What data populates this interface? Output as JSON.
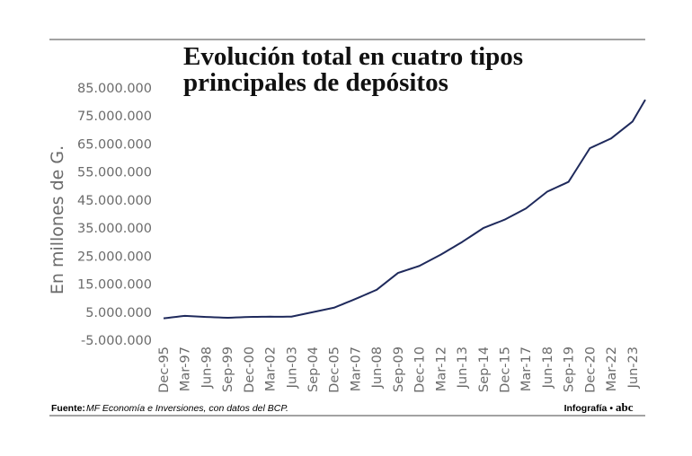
{
  "chart_data": {
    "type": "line",
    "title": [
      "Evolución total en cuatro tipos",
      "principales de depósitos"
    ],
    "y_label": "En millones de G.",
    "source_label": "Fuente:",
    "source": "MF Economía e Inversiones, con datos del BCP.",
    "credit": "Infografía •",
    "logo": "abc",
    "categories": [
      "Dec-95",
      null,
      null,
      null,
      null,
      "Mar-97",
      null,
      null,
      null,
      null,
      "Jun-98",
      null,
      null,
      null,
      null,
      "Sep-99",
      null,
      null,
      null,
      null,
      "Dec-00",
      null,
      null,
      null,
      null,
      "Mar-02",
      null,
      null,
      null,
      null,
      "Jun-03",
      null,
      null,
      null,
      null,
      "Sep-04",
      null,
      null,
      null,
      null,
      "Dec-05",
      null,
      null,
      null,
      null,
      "Mar-07",
      null,
      null,
      null,
      null,
      "Jun-08",
      null,
      null,
      null,
      null,
      "Sep-09",
      null,
      null,
      null,
      null,
      "Dec-10",
      null,
      null,
      null,
      null,
      "Mar-12",
      null,
      null,
      null,
      null,
      "Jun-13",
      null,
      null,
      null,
      null,
      "Sep-14",
      null,
      null,
      null,
      null,
      "Dec-15",
      null,
      null,
      null,
      null,
      "Mar-17",
      null,
      null,
      null,
      null,
      "Jun-18",
      null,
      null,
      null,
      null,
      "Sep-19",
      null,
      null,
      null,
      null,
      "Dec-20",
      null,
      null,
      null,
      null,
      "Mar-22",
      null,
      null,
      null,
      null,
      "Jun-23",
      null,
      null,
      null
    ],
    "series": [
      {
        "color": "#1f2a5c",
        "values": [
          2800000,
          2980000,
          3160000,
          3340000,
          3520000,
          3700000,
          3620000,
          3540000,
          3460000,
          3380000,
          3300000,
          3240000,
          3180000,
          3120000,
          3060000,
          3000000,
          3060000,
          3120000,
          3180000,
          3240000,
          3300000,
          3320000,
          3340000,
          3360000,
          3380000,
          3400000,
          3380000,
          3360000,
          3380000,
          3390000,
          3400000,
          3720000,
          4040000,
          4360000,
          4680000,
          5000000,
          5320000,
          5640000,
          5960000,
          6280000,
          6600000,
          7220000,
          7840000,
          8460000,
          9080000,
          9700000,
          10360000,
          11020000,
          11680000,
          12340000,
          13000000,
          14200000,
          15400000,
          16600000,
          17800000,
          19000000,
          19500000,
          20000000,
          20500000,
          21000000,
          21500000,
          22300000,
          23100000,
          23900000,
          24700000,
          25500000,
          26400000,
          27300000,
          28200000,
          29100000,
          30000000,
          31000000,
          32000000,
          33000000,
          34000000,
          35000000,
          35600000,
          36200000,
          36800000,
          37400000,
          38000000,
          38800000,
          39600000,
          40400000,
          41200000,
          42000000,
          43200000,
          44400000,
          45600000,
          46800000,
          48000000,
          48700000,
          49400000,
          50100000,
          50800000,
          51500000,
          53900000,
          56300000,
          58700000,
          61100000,
          63500000,
          64200000,
          64900000,
          65600000,
          66300000,
          67000000,
          68200000,
          69400000,
          70600000,
          71800000,
          73000000,
          75600000,
          78200000,
          80800000
        ]
      }
    ],
    "ylim": [
      -5000000,
      85000000
    ],
    "yticks": [
      {
        "value": -5000000,
        "label": "-5.000.000"
      },
      {
        "value": 5000000,
        "label": "5.000.000"
      },
      {
        "value": 15000000,
        "label": "15.000.000"
      },
      {
        "value": 25000000,
        "label": "25.000.000"
      },
      {
        "value": 35000000,
        "label": "35.000.000"
      },
      {
        "value": 45000000,
        "label": "45.000.000"
      },
      {
        "value": 55000000,
        "label": "55.000.000"
      },
      {
        "value": 65000000,
        "label": "65.000.000"
      },
      {
        "value": 75000000,
        "label": "75.000.000"
      },
      {
        "value": 85000000,
        "label": "85.000.000"
      }
    ],
    "grid": false
  }
}
